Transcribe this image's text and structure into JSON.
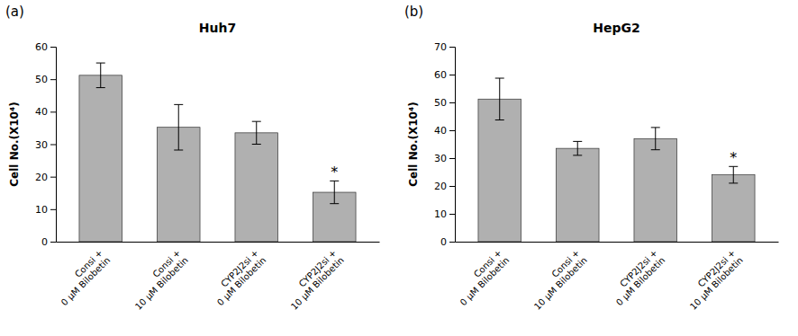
{
  "chart_data": [
    {
      "type": "bar",
      "label": "(a)",
      "title": "Huh7",
      "ylabel": "Cell No.(X10⁴)",
      "categories": [
        "Consi +\n0 μM Bilobetin",
        "Consi +\n10 μM Bilobetin",
        "CYP2J2si +\n0 μM Bilobetin",
        "CYP2J2si +\n10 μM Bilobetin"
      ],
      "values": [
        51.2,
        35.2,
        33.5,
        15.2
      ],
      "errors": [
        3.8,
        7.0,
        3.5,
        3.5
      ],
      "color": "#b0b0b0",
      "ylim": [
        0,
        60
      ],
      "yticks": [
        0,
        10,
        20,
        30,
        40,
        50,
        60
      ],
      "annotations": [
        {
          "text": "*",
          "category": "CYP2J2si +\n10 μM Bilobetin"
        }
      ]
    },
    {
      "type": "bar",
      "label": "(b)",
      "title": "HepG2",
      "ylabel": "Cell No.(X10⁴)",
      "categories": [
        "Consi +\n0 μM Bilobetin",
        "Consi +\n10 μM Bilobetin",
        "CYP2J2si +\n0 μM Bilobetin",
        "CYP2J2si +\n10 μM Bilobetin"
      ],
      "values": [
        51.2,
        33.5,
        37.0,
        24.0
      ],
      "errors": [
        7.5,
        2.5,
        4.0,
        3.0
      ],
      "color": "#b0b0b0",
      "ylim": [
        0,
        70
      ],
      "yticks": [
        0,
        10,
        20,
        30,
        40,
        50,
        60,
        70
      ],
      "annotations": [
        {
          "text": "*",
          "category": "CYP2J2si +\n10 μM Bilobetin"
        }
      ]
    }
  ]
}
